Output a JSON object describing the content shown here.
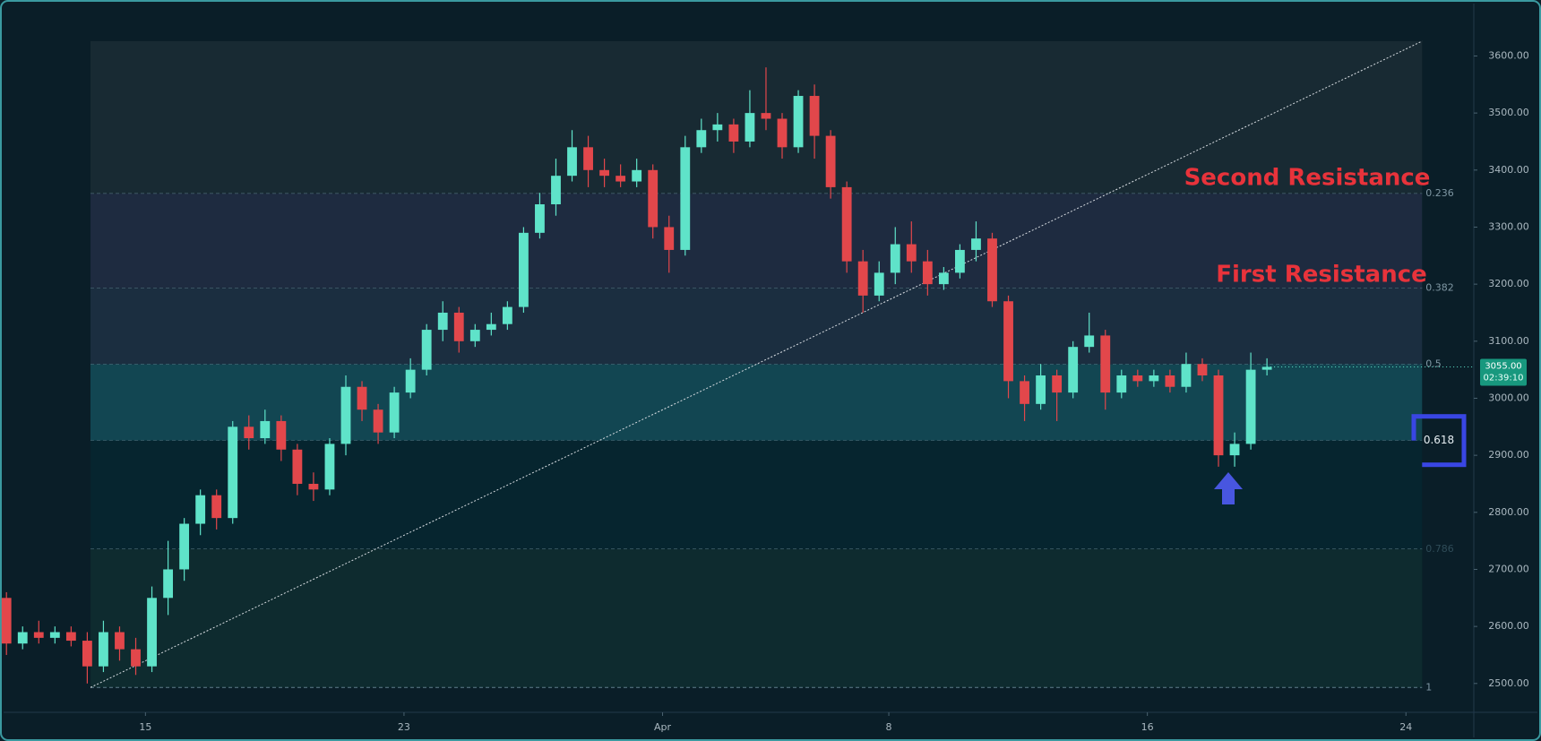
{
  "chart_data": {
    "type": "candlestick",
    "up_color": "#5fe3c9",
    "down_color": "#e2474b",
    "xlim": [
      -4.5,
      41.1
    ],
    "ylim": [
      2440,
      3640
    ],
    "xticks": [
      {
        "value": 0,
        "label": "15"
      },
      {
        "value": 8,
        "label": "23"
      },
      {
        "value": 16,
        "label": "Apr"
      },
      {
        "value": 23,
        "label": "8"
      },
      {
        "value": 31,
        "label": "16"
      },
      {
        "value": 39,
        "label": "24"
      }
    ],
    "yticks": [
      {
        "value": 2500,
        "label": "2500.00"
      },
      {
        "value": 2600,
        "label": "2600.00"
      },
      {
        "value": 2700,
        "label": "2700.00"
      },
      {
        "value": 2800,
        "label": "2800.00"
      },
      {
        "value": 2900,
        "label": "2900.00"
      },
      {
        "value": 3000,
        "label": "3000.00"
      },
      {
        "value": 3100,
        "label": "3100.00"
      },
      {
        "value": 3200,
        "label": "3200.00"
      },
      {
        "value": 3300,
        "label": "3300.00"
      },
      {
        "value": 3400,
        "label": "3400.00"
      },
      {
        "value": 3500,
        "label": "3500.00"
      },
      {
        "value": 3600,
        "label": "3600.00"
      }
    ],
    "x": [
      -4.3,
      -3.8,
      -3.3,
      -2.8,
      -2.3,
      -1.8,
      -1.3,
      -0.8,
      -0.3,
      0.2,
      0.7,
      1.2,
      1.7,
      2.2,
      2.7,
      3.2,
      3.7,
      4.2,
      4.7,
      5.2,
      5.7,
      6.2,
      6.7,
      7.2,
      7.7,
      8.2,
      8.7,
      9.2,
      9.7,
      10.2,
      10.7,
      11.2,
      11.7,
      12.2,
      12.7,
      13.2,
      13.7,
      14.2,
      14.7,
      15.2,
      15.7,
      16.2,
      16.7,
      17.2,
      17.7,
      18.2,
      18.7,
      19.2,
      19.7,
      20.2,
      20.7,
      21.2,
      21.7,
      22.2,
      22.7,
      23.2,
      23.7,
      24.2,
      24.7,
      25.2,
      25.7,
      26.2,
      26.7,
      27.2,
      27.7,
      28.2,
      28.7,
      29.2,
      29.7,
      30.2,
      30.7,
      31.2,
      31.7,
      32.2,
      32.7,
      33.2,
      33.7,
      34.2,
      34.7
    ],
    "ohlc": [
      [
        2650,
        2660,
        2550,
        2570
      ],
      [
        2570,
        2600,
        2560,
        2590
      ],
      [
        2590,
        2610,
        2570,
        2580
      ],
      [
        2580,
        2600,
        2570,
        2590
      ],
      [
        2590,
        2600,
        2565,
        2575
      ],
      [
        2575,
        2590,
        2500,
        2530
      ],
      [
        2530,
        2610,
        2520,
        2590
      ],
      [
        2590,
        2600,
        2540,
        2560
      ],
      [
        2560,
        2580,
        2515,
        2530
      ],
      [
        2530,
        2670,
        2520,
        2650
      ],
      [
        2650,
        2750,
        2620,
        2700
      ],
      [
        2700,
        2790,
        2680,
        2780
      ],
      [
        2780,
        2840,
        2760,
        2830
      ],
      [
        2830,
        2840,
        2770,
        2790
      ],
      [
        2790,
        2960,
        2780,
        2950
      ],
      [
        2950,
        2970,
        2910,
        2930
      ],
      [
        2930,
        2980,
        2920,
        2960
      ],
      [
        2960,
        2970,
        2890,
        2910
      ],
      [
        2910,
        2920,
        2830,
        2850
      ],
      [
        2850,
        2870,
        2820,
        2840
      ],
      [
        2840,
        2930,
        2830,
        2920
      ],
      [
        2920,
        3040,
        2900,
        3020
      ],
      [
        3020,
        3030,
        2960,
        2980
      ],
      [
        2980,
        2990,
        2920,
        2940
      ],
      [
        2940,
        3020,
        2930,
        3010
      ],
      [
        3010,
        3070,
        3000,
        3050
      ],
      [
        3050,
        3130,
        3040,
        3120
      ],
      [
        3120,
        3170,
        3100,
        3150
      ],
      [
        3150,
        3160,
        3080,
        3100
      ],
      [
        3100,
        3130,
        3090,
        3120
      ],
      [
        3120,
        3150,
        3110,
        3130
      ],
      [
        3130,
        3170,
        3120,
        3160
      ],
      [
        3160,
        3300,
        3150,
        3290
      ],
      [
        3290,
        3360,
        3280,
        3340
      ],
      [
        3340,
        3420,
        3320,
        3390
      ],
      [
        3390,
        3470,
        3380,
        3440
      ],
      [
        3440,
        3460,
        3370,
        3400
      ],
      [
        3400,
        3420,
        3370,
        3390
      ],
      [
        3390,
        3410,
        3370,
        3380
      ],
      [
        3380,
        3420,
        3370,
        3400
      ],
      [
        3400,
        3410,
        3280,
        3300
      ],
      [
        3300,
        3320,
        3220,
        3260
      ],
      [
        3260,
        3460,
        3250,
        3440
      ],
      [
        3440,
        3490,
        3430,
        3470
      ],
      [
        3470,
        3500,
        3450,
        3480
      ],
      [
        3480,
        3490,
        3430,
        3450
      ],
      [
        3450,
        3540,
        3440,
        3500
      ],
      [
        3500,
        3580,
        3470,
        3490
      ],
      [
        3490,
        3500,
        3420,
        3440
      ],
      [
        3440,
        3540,
        3430,
        3530
      ],
      [
        3530,
        3550,
        3420,
        3460
      ],
      [
        3460,
        3470,
        3350,
        3370
      ],
      [
        3370,
        3380,
        3220,
        3240
      ],
      [
        3240,
        3260,
        3150,
        3180
      ],
      [
        3180,
        3240,
        3170,
        3220
      ],
      [
        3220,
        3300,
        3200,
        3270
      ],
      [
        3270,
        3310,
        3220,
        3240
      ],
      [
        3240,
        3260,
        3180,
        3200
      ],
      [
        3200,
        3230,
        3190,
        3220
      ],
      [
        3220,
        3270,
        3210,
        3260
      ],
      [
        3260,
        3310,
        3240,
        3280
      ],
      [
        3280,
        3290,
        3160,
        3170
      ],
      [
        3170,
        3180,
        3000,
        3030
      ],
      [
        3030,
        3040,
        2960,
        2990
      ],
      [
        2990,
        3060,
        2980,
        3040
      ],
      [
        3040,
        3050,
        2960,
        3010
      ],
      [
        3010,
        3100,
        3000,
        3090
      ],
      [
        3090,
        3150,
        3080,
        3110
      ],
      [
        3110,
        3120,
        2980,
        3010
      ],
      [
        3010,
        3050,
        3000,
        3040
      ],
      [
        3040,
        3050,
        3020,
        3030
      ],
      [
        3030,
        3050,
        3020,
        3040
      ],
      [
        3040,
        3050,
        3010,
        3020
      ],
      [
        3020,
        3080,
        3010,
        3060
      ],
      [
        3060,
        3070,
        3030,
        3040
      ],
      [
        3040,
        3050,
        2880,
        2900
      ],
      [
        2900,
        2940,
        2880,
        2920
      ],
      [
        2920,
        3080,
        2910,
        3050
      ],
      [
        3050,
        3070,
        3040,
        3055
      ]
    ],
    "fib_x": [
      -1.7,
      39.5
    ],
    "fib_high": 3626,
    "fib_low": 2493,
    "fib_levels": [
      0.236,
      0.382,
      0.5,
      0.618,
      0.786,
      1
    ],
    "fib_zone_colors": [
      "#182a33",
      "#1e2b40",
      "#1b2e40",
      "#124652",
      "#06252f",
      "#0e2b2f"
    ],
    "trendline": {
      "x": [
        -1.7,
        39.5
      ],
      "y": [
        2493,
        3626
      ]
    },
    "annotations": [
      "Second Resistance",
      "First Resistance"
    ],
    "last_price": 3055,
    "last_price_label": "3055.00",
    "countdown": "02:39:10",
    "highlight_level": "0.618"
  }
}
